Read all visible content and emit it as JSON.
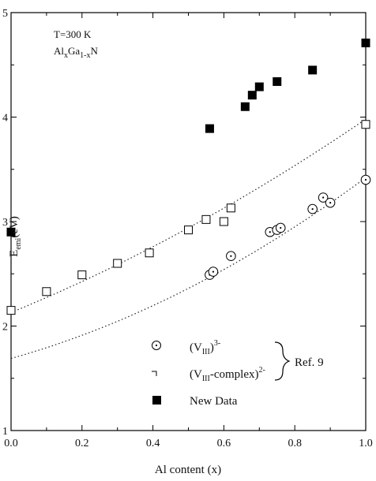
{
  "chart_data": {
    "type": "scatter",
    "xlabel": "Al content (x)",
    "ylabel": {
      "main": "E",
      "sub": "emi",
      "rest": "(eV)"
    },
    "xlim": [
      0.0,
      1.0
    ],
    "ylim": [
      1,
      5
    ],
    "xticks": [
      "0.0",
      "0.2",
      "0.4",
      "0.6",
      "0.8",
      "1.0"
    ],
    "yticks": [
      "1",
      "2",
      "3",
      "4",
      "5"
    ],
    "annotation": {
      "line1": "T=300 K",
      "line2": {
        "a": "Al",
        "b": "x",
        "c": "Ga",
        "d": "1-x",
        "e": "N"
      }
    },
    "legend": {
      "placement": "bottom-center",
      "items": [
        {
          "main": "(V",
          "sub": "III",
          "close": ")",
          "sup": "3-"
        },
        {
          "main": "(V",
          "sub": "III",
          "close": "-complex)",
          "sup": "2-"
        },
        {
          "main": "New Data"
        }
      ],
      "group_label": "Ref. 9"
    },
    "series": [
      {
        "marker": "circle-dot",
        "points": [
          [
            0.56,
            2.49
          ],
          [
            0.57,
            2.52
          ],
          [
            0.62,
            2.67
          ],
          [
            0.73,
            2.9
          ],
          [
            0.75,
            2.92
          ],
          [
            0.76,
            2.94
          ],
          [
            0.85,
            3.12
          ],
          [
            0.88,
            3.23
          ],
          [
            0.9,
            3.18
          ],
          [
            1.0,
            3.4
          ]
        ]
      },
      {
        "marker": "open-square",
        "points": [
          [
            0.0,
            2.15
          ],
          [
            0.1,
            2.33
          ],
          [
            0.2,
            2.49
          ],
          [
            0.3,
            2.6
          ],
          [
            0.39,
            2.7
          ],
          [
            0.5,
            2.92
          ],
          [
            0.55,
            3.02
          ],
          [
            0.6,
            3.0
          ],
          [
            0.62,
            3.13
          ],
          [
            1.0,
            3.93
          ]
        ]
      },
      {
        "marker": "filled-square",
        "points": [
          [
            0.0,
            2.9
          ],
          [
            0.56,
            3.89
          ],
          [
            0.66,
            4.1
          ],
          [
            0.68,
            4.21
          ],
          [
            0.7,
            4.29
          ],
          [
            0.75,
            4.34
          ],
          [
            0.85,
            4.45
          ],
          [
            1.0,
            4.71
          ]
        ]
      }
    ],
    "fit_lines": [
      {
        "style": "dotted",
        "from": [
          0.0,
          2.13
        ],
        "to": [
          1.0,
          3.98
        ],
        "curvature": 0.25
      },
      {
        "style": "dotted",
        "from": [
          0.0,
          1.69
        ],
        "to": [
          1.0,
          3.42
        ],
        "curvature": 0.45
      }
    ],
    "grid": false
  }
}
